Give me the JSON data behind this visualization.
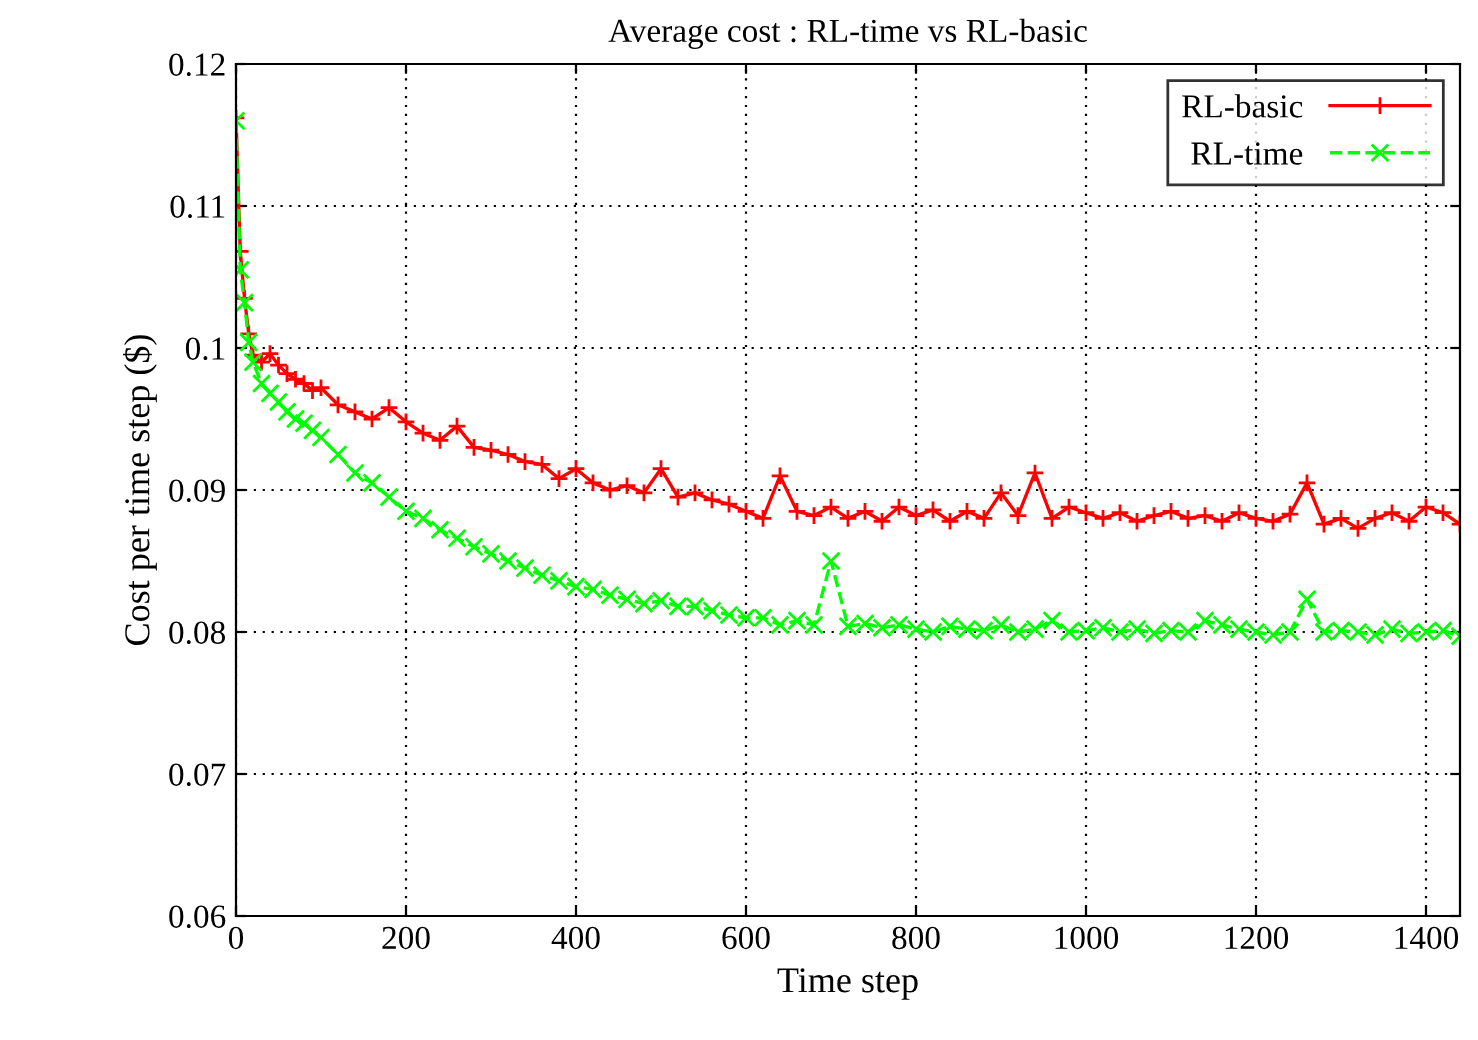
{
  "chart_data": {
    "type": "line",
    "title": "Average cost : RL-time vs RL-basic",
    "xlabel": "Time step",
    "ylabel": "Cost per time step ($)",
    "xlim": [
      0,
      1440
    ],
    "ylim": [
      0.06,
      0.12
    ],
    "xticks": [
      0,
      200,
      400,
      600,
      800,
      1000,
      1200,
      1400
    ],
    "yticks": [
      0.06,
      0.07,
      0.08,
      0.09,
      0.1,
      0.11,
      0.12
    ],
    "grid": true,
    "legend": "top right",
    "x": [
      0,
      5,
      10,
      15,
      20,
      30,
      40,
      50,
      60,
      70,
      80,
      90,
      100,
      120,
      140,
      160,
      180,
      200,
      220,
      240,
      260,
      280,
      300,
      320,
      340,
      360,
      380,
      400,
      420,
      440,
      460,
      480,
      500,
      520,
      540,
      560,
      580,
      600,
      620,
      640,
      660,
      680,
      700,
      720,
      740,
      760,
      780,
      800,
      820,
      840,
      860,
      880,
      900,
      920,
      940,
      960,
      980,
      1000,
      1020,
      1040,
      1060,
      1080,
      1100,
      1120,
      1140,
      1160,
      1180,
      1200,
      1220,
      1240,
      1260,
      1280,
      1300,
      1320,
      1340,
      1360,
      1380,
      1400,
      1420,
      1440
    ],
    "series": [
      {
        "name": "RL-basic",
        "color": "#ff0000",
        "marker": "plus",
        "line_style": "solid",
        "values": [
          0.1162,
          0.1068,
          0.1035,
          0.101,
          0.0995,
          0.099,
          0.0996,
          0.0988,
          0.0982,
          0.0978,
          0.0975,
          0.097,
          0.0972,
          0.096,
          0.0955,
          0.095,
          0.0958,
          0.0948,
          0.094,
          0.0935,
          0.0945,
          0.093,
          0.0928,
          0.0925,
          0.092,
          0.0918,
          0.0908,
          0.0915,
          0.0905,
          0.09,
          0.0903,
          0.0898,
          0.0915,
          0.0895,
          0.0898,
          0.0893,
          0.089,
          0.0885,
          0.088,
          0.091,
          0.0885,
          0.0882,
          0.0888,
          0.088,
          0.0885,
          0.0878,
          0.0888,
          0.0882,
          0.0886,
          0.0878,
          0.0885,
          0.088,
          0.0898,
          0.0882,
          0.0912,
          0.088,
          0.0888,
          0.0884,
          0.088,
          0.0884,
          0.0878,
          0.0882,
          0.0885,
          0.088,
          0.0882,
          0.0878,
          0.0884,
          0.088,
          0.0878,
          0.0883,
          0.0905,
          0.0876,
          0.088,
          0.0873,
          0.088,
          0.0884,
          0.0878,
          0.0888,
          0.0884,
          0.0876
        ]
      },
      {
        "name": "RL-time",
        "color": "#00ff00",
        "marker": "cross",
        "line_style": "dashed",
        "values": [
          0.116,
          0.1055,
          0.1032,
          0.1004,
          0.099,
          0.0975,
          0.0968,
          0.0962,
          0.0955,
          0.095,
          0.0947,
          0.0942,
          0.0937,
          0.0925,
          0.0912,
          0.0905,
          0.0895,
          0.0885,
          0.088,
          0.0872,
          0.0866,
          0.086,
          0.0855,
          0.085,
          0.0845,
          0.084,
          0.0836,
          0.0832,
          0.083,
          0.0826,
          0.0823,
          0.082,
          0.0822,
          0.0818,
          0.0818,
          0.0815,
          0.0812,
          0.081,
          0.081,
          0.0805,
          0.0808,
          0.0805,
          0.085,
          0.0804,
          0.0806,
          0.0803,
          0.0805,
          0.0802,
          0.08,
          0.0804,
          0.0802,
          0.0801,
          0.0805,
          0.08,
          0.0802,
          0.0808,
          0.08,
          0.0801,
          0.0803,
          0.08,
          0.0802,
          0.0799,
          0.0801,
          0.08,
          0.0808,
          0.0805,
          0.0802,
          0.08,
          0.0798,
          0.08,
          0.0823,
          0.08,
          0.0801,
          0.08,
          0.0798,
          0.0802,
          0.0799,
          0.08,
          0.0801,
          0.0797
        ]
      }
    ]
  }
}
